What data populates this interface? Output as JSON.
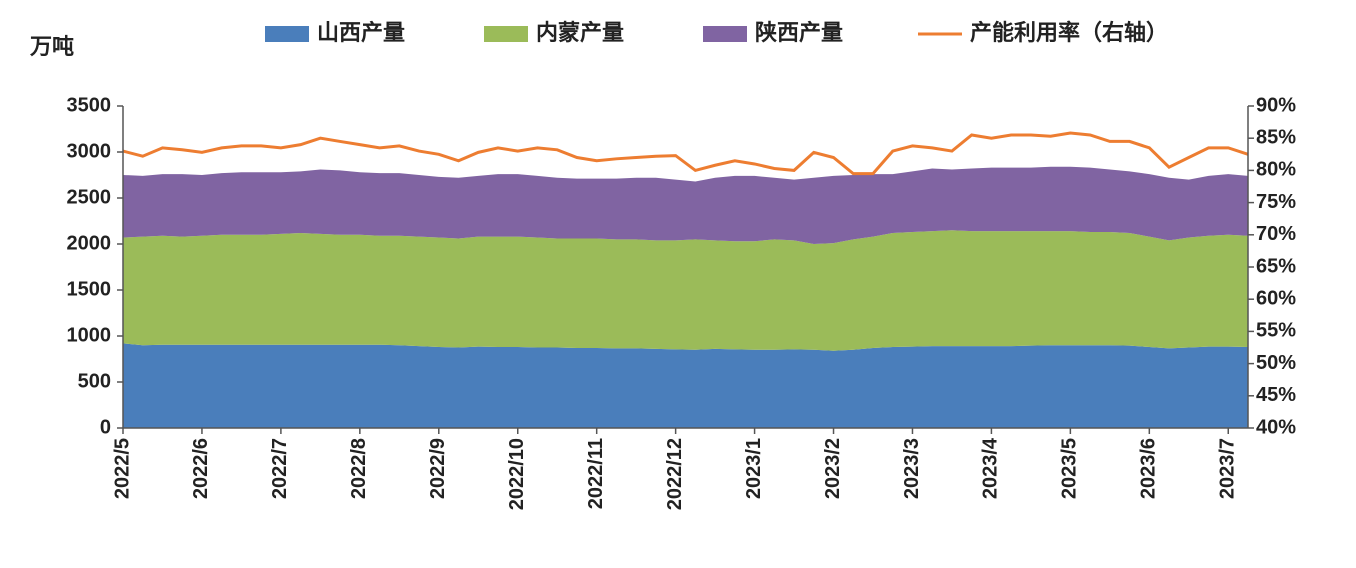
{
  "chart_data": {
    "type": "stacked-area-line",
    "y_label": "万吨",
    "categories": [
      "2022/5",
      null,
      null,
      null,
      "2022/6",
      null,
      null,
      null,
      "2022/7",
      null,
      null,
      null,
      "2022/8",
      null,
      null,
      null,
      "2022/9",
      null,
      null,
      null,
      "2022/10",
      null,
      null,
      null,
      "2022/11",
      null,
      null,
      null,
      "2022/12",
      null,
      null,
      null,
      "2023/1",
      null,
      null,
      null,
      "2023/2",
      null,
      null,
      null,
      "2023/3",
      null,
      null,
      null,
      "2023/4",
      null,
      null,
      null,
      "2023/5",
      null,
      null,
      null,
      "2023/6",
      null,
      null,
      null,
      "2023/7",
      null
    ],
    "series": [
      {
        "name": "山西产量",
        "color": "#4a7ebb",
        "values": [
          920,
          900,
          905,
          905,
          905,
          905,
          905,
          905,
          905,
          905,
          905,
          905,
          905,
          905,
          900,
          890,
          880,
          875,
          885,
          880,
          880,
          875,
          875,
          870,
          870,
          865,
          865,
          860,
          855,
          850,
          860,
          855,
          850,
          850,
          855,
          850,
          840,
          850,
          870,
          880,
          885,
          890,
          890,
          890,
          890,
          890,
          895,
          900,
          900,
          900,
          900,
          895,
          880,
          865,
          875,
          885,
          885,
          880
        ]
      },
      {
        "name": "内蒙产量",
        "color": "#9bbb59",
        "values": [
          1150,
          1180,
          1185,
          1175,
          1185,
          1195,
          1195,
          1195,
          1205,
          1215,
          1205,
          1195,
          1195,
          1185,
          1190,
          1190,
          1190,
          1185,
          1195,
          1200,
          1200,
          1195,
          1185,
          1190,
          1190,
          1185,
          1185,
          1180,
          1185,
          1200,
          1180,
          1175,
          1180,
          1200,
          1185,
          1150,
          1170,
          1200,
          1210,
          1240,
          1245,
          1250,
          1260,
          1250,
          1250,
          1250,
          1245,
          1240,
          1240,
          1230,
          1230,
          1225,
          1200,
          1175,
          1195,
          1205,
          1215,
          1210
        ]
      },
      {
        "name": "陕西产量",
        "color": "#8064a2",
        "values": [
          680,
          660,
          670,
          680,
          660,
          670,
          680,
          680,
          670,
          670,
          700,
          700,
          680,
          680,
          680,
          670,
          660,
          660,
          660,
          680,
          680,
          670,
          660,
          650,
          650,
          660,
          670,
          680,
          660,
          630,
          680,
          710,
          710,
          670,
          660,
          720,
          730,
          700,
          680,
          640,
          660,
          680,
          660,
          680,
          690,
          690,
          690,
          700,
          700,
          700,
          680,
          670,
          680,
          680,
          630,
          650,
          660,
          650
        ]
      },
      {
        "name": "产能利用率（右轴）",
        "color": "#ed7d31",
        "axis": "y2",
        "values": [
          83,
          82.2,
          83.5,
          83.2,
          82.8,
          83.5,
          83.8,
          83.8,
          83.5,
          84,
          85,
          84.5,
          84,
          83.5,
          83.8,
          83,
          82.5,
          81.5,
          82.8,
          83.5,
          83,
          83.5,
          83.2,
          82,
          81.5,
          81.8,
          82,
          82.2,
          82.3,
          80,
          80.8,
          81.5,
          81,
          80.3,
          80,
          82.8,
          82,
          79.5,
          79.5,
          83,
          83.8,
          83.5,
          83,
          85.5,
          85,
          85.5,
          85.5,
          85.3,
          85.8,
          85.5,
          84.5,
          84.5,
          83.5,
          80.5,
          82,
          83.5,
          83.5,
          82.5
        ]
      }
    ],
    "ylim": [
      0,
      3500
    ],
    "yticks": [
      0,
      500,
      1000,
      1500,
      2000,
      2500,
      3000,
      3500
    ],
    "y2lim": [
      40,
      90
    ],
    "y2ticks": [
      {
        "value": 40,
        "label": "40%"
      },
      {
        "value": 45,
        "label": "45%"
      },
      {
        "value": 50,
        "label": "50%"
      },
      {
        "value": 55,
        "label": "55%"
      },
      {
        "value": 60,
        "label": "60%"
      },
      {
        "value": 65,
        "label": "65%"
      },
      {
        "value": 70,
        "label": "70%"
      },
      {
        "value": 75,
        "label": "75%"
      },
      {
        "value": 80,
        "label": "80%"
      },
      {
        "value": 85,
        "label": "85%"
      },
      {
        "value": 90,
        "label": "90%"
      }
    ]
  }
}
